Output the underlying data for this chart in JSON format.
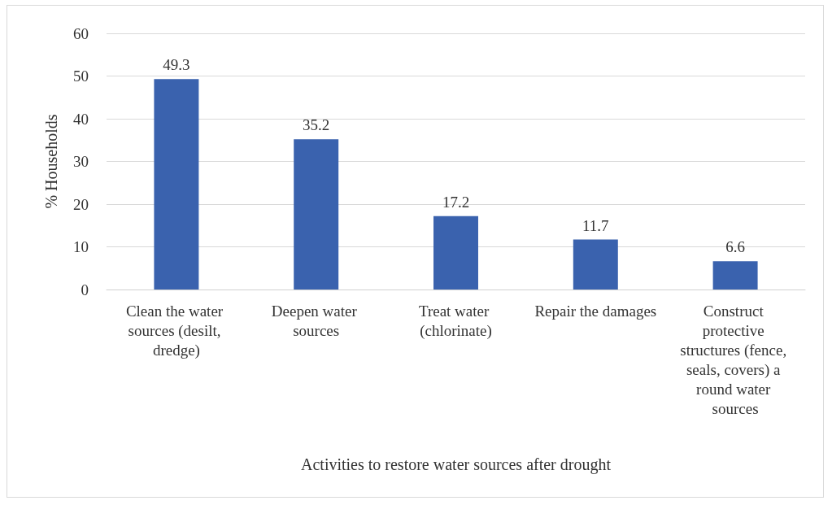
{
  "chart_data": {
    "type": "bar",
    "categories": [
      "Clean the water sources (desilt, dredge)",
      "Deepen water sources",
      "Treat water (chlorinate)",
      "Repair the damages",
      "Construct protective structures (fence, seals, covers) a round water sources"
    ],
    "values": [
      49.3,
      35.2,
      17.2,
      11.7,
      6.6
    ],
    "color": "#3a62ae",
    "xlabel": "Activities to restore water sources after drought",
    "ylabel": "% Households",
    "ylim": [
      0,
      60
    ],
    "yticks": [
      0,
      10,
      20,
      30,
      40,
      50,
      60
    ],
    "grid": "y",
    "data_labels": true
  }
}
